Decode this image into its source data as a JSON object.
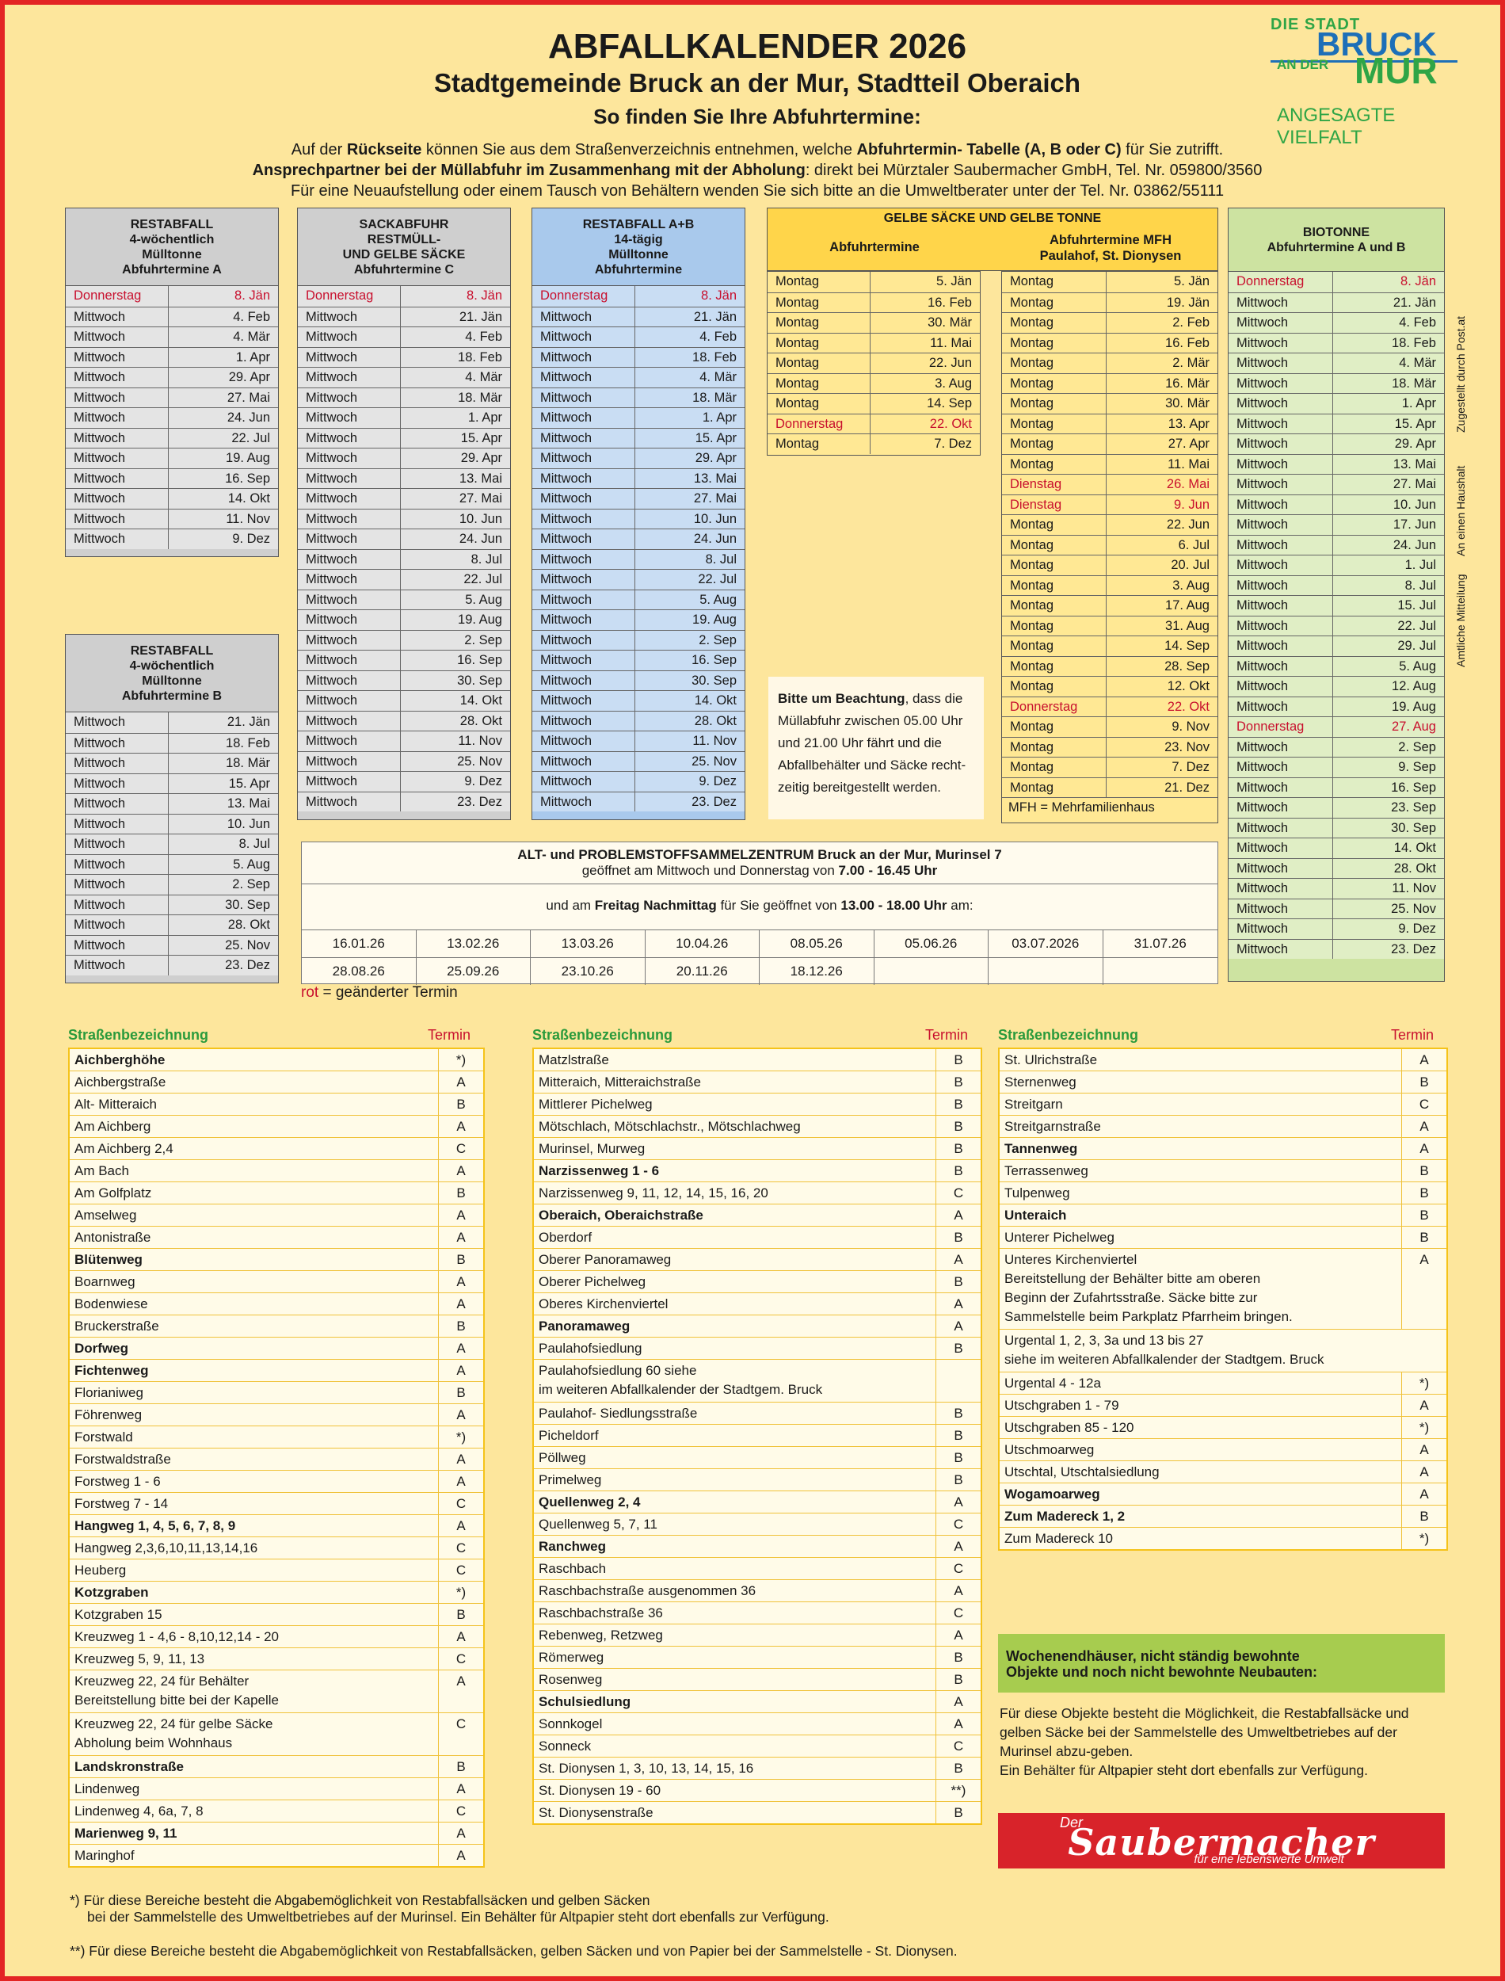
{
  "header": {
    "title": "ABFALLKALENDER 2026",
    "subtitle": "Stadtgemeinde Bruck an der Mur, Stadtteil Oberaich",
    "subtitle2": "So finden Sie Ihre Abfuhrtermine:",
    "info1a": "Auf der ",
    "info1b": "Rückseite",
    "info1c": " können Sie aus dem Straßenverzeichnis entnehmen, welche ",
    "info1d": "Abfuhrtermin- Tabelle (A, B oder C)",
    "info1e": " für Sie zutrifft.",
    "info2a": "Ansprechpartner bei der Müllabfuhr im Zusammenhang mit der Abholung",
    "info2b": ": direkt bei Mürztaler Saubermacher GmbH, Tel. Nr. 059800/3560",
    "info3": "Für eine Neuaufstellung oder einem Tausch von Behältern wenden Sie sich bitte an die Umweltberater unter der Tel. Nr. 03862/55111"
  },
  "logo": {
    "l1": "DIE STADT",
    "l2": "BRUCK",
    "l3": "AN DER",
    "l4": "MUR",
    "l5": "ANGESAGTE VIELFALT"
  },
  "colors": {
    "page": "#fde69c",
    "border": "#e32424",
    "red_text": "#c8102e",
    "green_heading": "#2a9a3c"
  },
  "tables": {
    "restA": {
      "h1": "RESTABFALL",
      "h2": "4-wöchentlich",
      "h3": "Mülltonne",
      "h4": "Abfuhrtermine A",
      "rows": [
        [
          "Donnerstag",
          "8. Jän",
          1
        ],
        [
          "Mittwoch",
          "4. Feb"
        ],
        [
          "Mittwoch",
          "4. Mär"
        ],
        [
          "Mittwoch",
          "1. Apr"
        ],
        [
          "Mittwoch",
          "29. Apr"
        ],
        [
          "Mittwoch",
          "27. Mai"
        ],
        [
          "Mittwoch",
          "24. Jun"
        ],
        [
          "Mittwoch",
          "22. Jul"
        ],
        [
          "Mittwoch",
          "19. Aug"
        ],
        [
          "Mittwoch",
          "16. Sep"
        ],
        [
          "Mittwoch",
          "14. Okt"
        ],
        [
          "Mittwoch",
          "11. Nov"
        ],
        [
          "Mittwoch",
          "9. Dez"
        ]
      ]
    },
    "restB": {
      "h1": "RESTABFALL",
      "h2": "4-wöchentlich",
      "h3": "Mülltonne",
      "h4": "Abfuhrtermine B",
      "rows": [
        [
          "Mittwoch",
          "21. Jän"
        ],
        [
          "Mittwoch",
          "18. Feb"
        ],
        [
          "Mittwoch",
          "18. Mär"
        ],
        [
          "Mittwoch",
          "15. Apr"
        ],
        [
          "Mittwoch",
          "13. Mai"
        ],
        [
          "Mittwoch",
          "10. Jun"
        ],
        [
          "Mittwoch",
          "8. Jul"
        ],
        [
          "Mittwoch",
          "5. Aug"
        ],
        [
          "Mittwoch",
          "2. Sep"
        ],
        [
          "Mittwoch",
          "30. Sep"
        ],
        [
          "Mittwoch",
          "28. Okt"
        ],
        [
          "Mittwoch",
          "25. Nov"
        ],
        [
          "Mittwoch",
          "23. Dez"
        ]
      ]
    },
    "sackC": {
      "h1": "SACKABFUHR",
      "h2": "RESTMÜLL-",
      "h3": "UND GELBE SÄCKE",
      "h4": "Abfuhrtermine C",
      "rows": [
        [
          "Donnerstag",
          "8. Jän",
          1
        ],
        [
          "Mittwoch",
          "21. Jän"
        ],
        [
          "Mittwoch",
          "4. Feb"
        ],
        [
          "Mittwoch",
          "18. Feb"
        ],
        [
          "Mittwoch",
          "4. Mär"
        ],
        [
          "Mittwoch",
          "18. Mär"
        ],
        [
          "Mittwoch",
          "1. Apr"
        ],
        [
          "Mittwoch",
          "15. Apr"
        ],
        [
          "Mittwoch",
          "29. Apr"
        ],
        [
          "Mittwoch",
          "13. Mai"
        ],
        [
          "Mittwoch",
          "27. Mai"
        ],
        [
          "Mittwoch",
          "10. Jun"
        ],
        [
          "Mittwoch",
          "24. Jun"
        ],
        [
          "Mittwoch",
          "8. Jul"
        ],
        [
          "Mittwoch",
          "22. Jul"
        ],
        [
          "Mittwoch",
          "5. Aug"
        ],
        [
          "Mittwoch",
          "19. Aug"
        ],
        [
          "Mittwoch",
          "2. Sep"
        ],
        [
          "Mittwoch",
          "16. Sep"
        ],
        [
          "Mittwoch",
          "30. Sep"
        ],
        [
          "Mittwoch",
          "14. Okt"
        ],
        [
          "Mittwoch",
          "28. Okt"
        ],
        [
          "Mittwoch",
          "11. Nov"
        ],
        [
          "Mittwoch",
          "25. Nov"
        ],
        [
          "Mittwoch",
          "9. Dez"
        ],
        [
          "Mittwoch",
          "23. Dez"
        ]
      ]
    },
    "restAB": {
      "h1": "RESTABFALL A+B",
      "h2": "14-tägig",
      "h3": "Mülltonne",
      "h4": "Abfuhrtermine",
      "rows": [
        [
          "Donnerstag",
          "8. Jän",
          1
        ],
        [
          "Mittwoch",
          "21. Jän"
        ],
        [
          "Mittwoch",
          "4. Feb"
        ],
        [
          "Mittwoch",
          "18. Feb"
        ],
        [
          "Mittwoch",
          "4. Mär"
        ],
        [
          "Mittwoch",
          "18. Mär"
        ],
        [
          "Mittwoch",
          "1. Apr"
        ],
        [
          "Mittwoch",
          "15. Apr"
        ],
        [
          "Mittwoch",
          "29. Apr"
        ],
        [
          "Mittwoch",
          "13. Mai"
        ],
        [
          "Mittwoch",
          "27. Mai"
        ],
        [
          "Mittwoch",
          "10. Jun"
        ],
        [
          "Mittwoch",
          "24. Jun"
        ],
        [
          "Mittwoch",
          "8. Jul"
        ],
        [
          "Mittwoch",
          "22. Jul"
        ],
        [
          "Mittwoch",
          "5. Aug"
        ],
        [
          "Mittwoch",
          "19. Aug"
        ],
        [
          "Mittwoch",
          "2. Sep"
        ],
        [
          "Mittwoch",
          "16. Sep"
        ],
        [
          "Mittwoch",
          "30. Sep"
        ],
        [
          "Mittwoch",
          "14. Okt"
        ],
        [
          "Mittwoch",
          "28. Okt"
        ],
        [
          "Mittwoch",
          "11. Nov"
        ],
        [
          "Mittwoch",
          "25. Nov"
        ],
        [
          "Mittwoch",
          "9. Dez"
        ],
        [
          "Mittwoch",
          "23. Dez"
        ]
      ]
    },
    "gelb": {
      "title": "GELBE SÄCKE UND GELBE TONNE",
      "c1": "Abfuhrtermine",
      "c2a": "Abfuhrtermine MFH",
      "c2b": "Paulahof, St. Dionysen",
      "note": "MFH = Mehrfamilienhaus",
      "rows1": [
        [
          "Montag",
          "5. Jän"
        ],
        [
          "Montag",
          "16. Feb"
        ],
        [
          "Montag",
          "30. Mär"
        ],
        [
          "Montag",
          "11. Mai"
        ],
        [
          "Montag",
          "22. Jun"
        ],
        [
          "Montag",
          "3. Aug"
        ],
        [
          "Montag",
          "14. Sep"
        ],
        [
          "Donnerstag",
          "22. Okt",
          1
        ],
        [
          "Montag",
          "7. Dez"
        ]
      ],
      "rows2": [
        [
          "Montag",
          "5. Jän"
        ],
        [
          "Montag",
          "19. Jän"
        ],
        [
          "Montag",
          "2. Feb"
        ],
        [
          "Montag",
          "16. Feb"
        ],
        [
          "Montag",
          "2. Mär"
        ],
        [
          "Montag",
          "16. Mär"
        ],
        [
          "Montag",
          "30. Mär"
        ],
        [
          "Montag",
          "13. Apr"
        ],
        [
          "Montag",
          "27. Apr"
        ],
        [
          "Montag",
          "11. Mai"
        ],
        [
          "Dienstag",
          "26. Mai",
          1
        ],
        [
          "Dienstag",
          "9. Jun",
          1
        ],
        [
          "Montag",
          "22. Jun"
        ],
        [
          "Montag",
          "6. Jul"
        ],
        [
          "Montag",
          "20. Jul"
        ],
        [
          "Montag",
          "3. Aug"
        ],
        [
          "Montag",
          "17. Aug"
        ],
        [
          "Montag",
          "31. Aug"
        ],
        [
          "Montag",
          "14. Sep"
        ],
        [
          "Montag",
          "28. Sep"
        ],
        [
          "Montag",
          "12. Okt"
        ],
        [
          "Donnerstag",
          "22. Okt",
          1
        ],
        [
          "Montag",
          "9. Nov"
        ],
        [
          "Montag",
          "23. Nov"
        ],
        [
          "Montag",
          "7. Dez"
        ],
        [
          "Montag",
          "21. Dez"
        ]
      ]
    },
    "bio": {
      "h1": "BIOTONNE",
      "h2": "Abfuhrtermine A und B",
      "rows": [
        [
          "Donnerstag",
          "8. Jän",
          1
        ],
        [
          "Mittwoch",
          "21. Jän"
        ],
        [
          "Mittwoch",
          "4. Feb"
        ],
        [
          "Mittwoch",
          "18. Feb"
        ],
        [
          "Mittwoch",
          "4. Mär"
        ],
        [
          "Mittwoch",
          "18. Mär"
        ],
        [
          "Mittwoch",
          "1. Apr"
        ],
        [
          "Mittwoch",
          "15. Apr"
        ],
        [
          "Mittwoch",
          "29. Apr"
        ],
        [
          "Mittwoch",
          "13. Mai"
        ],
        [
          "Mittwoch",
          "27. Mai"
        ],
        [
          "Mittwoch",
          "10. Jun"
        ],
        [
          "Mittwoch",
          "17. Jun"
        ],
        [
          "Mittwoch",
          "24. Jun"
        ],
        [
          "Mittwoch",
          "1. Jul"
        ],
        [
          "Mittwoch",
          "8. Jul"
        ],
        [
          "Mittwoch",
          "15. Jul"
        ],
        [
          "Mittwoch",
          "22. Jul"
        ],
        [
          "Mittwoch",
          "29. Jul"
        ],
        [
          "Mittwoch",
          "5. Aug"
        ],
        [
          "Mittwoch",
          "12. Aug"
        ],
        [
          "Mittwoch",
          "19. Aug"
        ],
        [
          "Donnerstag",
          "27. Aug",
          1
        ],
        [
          "Mittwoch",
          "2. Sep"
        ],
        [
          "Mittwoch",
          "9. Sep"
        ],
        [
          "Mittwoch",
          "16. Sep"
        ],
        [
          "Mittwoch",
          "23. Sep"
        ],
        [
          "Mittwoch",
          "30. Sep"
        ],
        [
          "Mittwoch",
          "14. Okt"
        ],
        [
          "Mittwoch",
          "28. Okt"
        ],
        [
          "Mittwoch",
          "11. Nov"
        ],
        [
          "Mittwoch",
          "25. Nov"
        ],
        [
          "Mittwoch",
          "9. Dez"
        ],
        [
          "Mittwoch",
          "23. Dez"
        ]
      ]
    }
  },
  "beachtung": {
    "b": "Bitte um Beachtung",
    "text": ", dass die Müllabfuhr zwischen 05.00 Uhr und 21.00 Uhr fährt und die Abfallbehälter und Säcke recht-zeitig bereitgestellt werden."
  },
  "sammel": {
    "t1": "ALT- und PROBLEMSTOFFSAMMELZENTRUM Bruck an der Mur, Murinsel 7",
    "t2a": "geöffnet am Mittwoch und Donnerstag von ",
    "t2b": "7.00 - 16.45 Uhr",
    "t3a": "und am ",
    "t3b": "Freitag Nachmittag",
    "t3c": " für Sie geöffnet von ",
    "t3d": "13.00 - 18.00 Uhr",
    "t3e": " am:",
    "dates": [
      "16.01.26",
      "13.02.26",
      "13.03.26",
      "10.04.26",
      "08.05.26",
      "05.06.26",
      "03.07.2026",
      "31.07.26",
      "28.08.26",
      "25.09.26",
      "23.10.26",
      "20.11.26",
      "18.12.26",
      "",
      "",
      ""
    ]
  },
  "legend": {
    "rot": "rot",
    "text": " = geänderter Termin"
  },
  "side": {
    "v1": "Zugestellt durch Post.at",
    "v2": "An einen Haushalt",
    "v3": "Amtliche Mitteilung"
  },
  "streets": {
    "head_name": "Straßenbezeichnung",
    "head_termin": "Termin",
    "col1": [
      [
        "Aichberghöhe",
        "*)",
        1
      ],
      [
        "Aichbergstraße",
        "A"
      ],
      [
        "Alt- Mitteraich",
        "B"
      ],
      [
        "Am Aichberg",
        "A"
      ],
      [
        "Am Aichberg 2,4",
        "C"
      ],
      [
        "Am Bach",
        "A"
      ],
      [
        "Am Golfplatz",
        "B"
      ],
      [
        "Amselweg",
        "A"
      ],
      [
        "Antonistraße",
        "A"
      ],
      [
        "Blütenweg",
        "B",
        1
      ],
      [
        "Boarnweg",
        "A"
      ],
      [
        "Bodenwiese",
        "A"
      ],
      [
        "Bruckerstraße",
        "B"
      ],
      [
        "Dorfweg",
        "A",
        1
      ],
      [
        "Fichtenweg",
        "A",
        1
      ],
      [
        "Florianiweg",
        "B"
      ],
      [
        "Föhrenweg",
        "A"
      ],
      [
        "Forstwald",
        "*)"
      ],
      [
        "Forstwaldstraße",
        "A"
      ],
      [
        "Forstweg 1 - 6",
        "A"
      ],
      [
        "Forstweg 7 - 14",
        "C"
      ],
      [
        "Hangweg 1, 4, 5, 6, 7, 8, 9",
        "A",
        1
      ],
      [
        "Hangweg 2,3,6,10,11,13,14,16",
        "C"
      ],
      [
        "Heuberg",
        "C"
      ],
      [
        "Kotzgraben",
        "*)",
        1
      ],
      [
        "Kotzgraben 15",
        "B"
      ],
      [
        "Kreuzweg 1 - 4,6 - 8,10,12,14 - 20",
        "A"
      ],
      [
        "Kreuzweg 5, 9, 11, 13",
        "C"
      ],
      [
        "Kreuzweg 22, 24 für Behälter\nBereitstellung bitte bei der Kapelle",
        "A"
      ],
      [
        "Kreuzweg 22, 24 für gelbe Säcke\nAbholung beim Wohnhaus",
        "C"
      ],
      [
        "Landskronstraße",
        "B",
        1
      ],
      [
        "Lindenweg",
        "A"
      ],
      [
        "Lindenweg 4, 6a, 7, 8",
        "C"
      ],
      [
        "Marienweg 9, 11",
        "A",
        1
      ],
      [
        "Maringhof",
        "A"
      ]
    ],
    "col2": [
      [
        "Matzlstraße",
        "B"
      ],
      [
        "Mitteraich, Mitteraichstraße",
        "B"
      ],
      [
        "Mittlerer Pichelweg",
        "B"
      ],
      [
        "Mötschlach, Mötschlachstr., Mötschlachweg",
        "B"
      ],
      [
        "Murinsel, Murweg",
        "B"
      ],
      [
        "Narzissenweg 1 - 6",
        "B",
        1
      ],
      [
        "Narzissenweg 9, 11, 12, 14, 15, 16, 20",
        "C"
      ],
      [
        "Oberaich, Oberaichstraße",
        "A",
        1
      ],
      [
        "Oberdorf",
        "B"
      ],
      [
        "Oberer Panoramaweg",
        "A"
      ],
      [
        "Oberer Pichelweg",
        "B"
      ],
      [
        "Oberes Kirchenviertel",
        "A"
      ],
      [
        "Panoramaweg",
        "A",
        1
      ],
      [
        "Paulahofsiedlung",
        "B"
      ],
      [
        "Paulahofsiedlung 60 siehe\nim weiteren Abfallkalender der Stadtgem. Bruck",
        ""
      ],
      [
        "Paulahof- Siedlungsstraße",
        "B"
      ],
      [
        "Picheldorf",
        "B"
      ],
      [
        "Pöllweg",
        "B"
      ],
      [
        "Primelweg",
        "B"
      ],
      [
        "Quellenweg 2, 4",
        "A",
        1
      ],
      [
        "Quellenweg 5, 7, 11",
        "C"
      ],
      [
        "Ranchweg",
        "A",
        1
      ],
      [
        "Raschbach",
        "C"
      ],
      [
        "Raschbachstraße ausgenommen 36",
        "A"
      ],
      [
        "Raschbachstraße 36",
        "C"
      ],
      [
        "Rebenweg, Retzweg",
        "A"
      ],
      [
        "Römerweg",
        "B"
      ],
      [
        "Rosenweg",
        "B"
      ],
      [
        "Schulsiedlung",
        "A",
        1
      ],
      [
        "Sonnkogel",
        "A"
      ],
      [
        "Sonneck",
        "C"
      ],
      [
        "St. Dionysen 1, 3, 10, 13, 14, 15, 16",
        "B"
      ],
      [
        "St. Dionysen 19 - 60",
        "**)"
      ],
      [
        "St. Dionysenstraße",
        "B"
      ]
    ],
    "col3": [
      [
        "St. Ulrichstraße",
        "A"
      ],
      [
        "Sternenweg",
        "B"
      ],
      [
        "Streitgarn",
        "C"
      ],
      [
        "Streitgarnstraße",
        "A"
      ],
      [
        "Tannenweg",
        "A",
        1
      ],
      [
        "Terrassenweg",
        "B"
      ],
      [
        "Tulpenweg",
        "B"
      ],
      [
        "Unteraich",
        "B",
        1
      ],
      [
        "Unterer Pichelweg",
        "B"
      ],
      [
        "Unteres Kirchenviertel\nBereitstellung der Behälter bitte am oberen\nBeginn der Zufahrtsstraße. Säcke bitte zur\nSammelstelle beim Parkplatz Pfarrheim bringen.",
        "A"
      ],
      [
        "Urgental 1, 2, 3, 3a und 13 bis 27\nsiehe im weiteren Abfallkalender der Stadtgem. Bruck",
        "",
        0,
        1
      ],
      [
        "Urgental 4 - 12a",
        "*)"
      ],
      [
        "Utschgraben 1 - 79",
        "A"
      ],
      [
        "Utschgraben 85 - 120",
        "*)"
      ],
      [
        "Utschmoarweg",
        "A"
      ],
      [
        "Utschtal, Utschtalsiedlung",
        "A"
      ],
      [
        "Wogamoarweg",
        "A",
        1
      ],
      [
        "Zum Madereck 1, 2",
        "B",
        1
      ],
      [
        "Zum Madereck 10",
        "*)"
      ]
    ]
  },
  "weekend": {
    "title": "Wochenendhäuser, nicht ständig bewohnte\nObjekte und noch nicht bewohnte Neubauten:",
    "text": "Für diese Objekte besteht die Möglichkeit, die Restabfallsäcke und gelben Säcke bei der Sammelstelle des Umweltbetriebes auf der Murinsel abzu-geben.\nEin Behälter für Altpapier steht dort ebenfalls zur Verfügung."
  },
  "saubermacher": {
    "der": "Der",
    "name": "Saubermacher",
    "slogan": "für eine lebenswerte Umwelt"
  },
  "footnotes": {
    "f1a": "*) Für diese Bereiche besteht die Abgabemöglichkeit von Restabfallsäcken und gelben Säcken",
    "f1b": "bei der Sammelstelle des Umweltbetriebes auf der Murinsel. Ein Behälter für Altpapier steht dort ebenfalls zur Verfügung.",
    "f2": "**) Für diese Bereiche besteht die Abgabemöglichkeit von Restabfallsäcken, gelben Säcken und von Papier bei der Sammelstelle - St. Dionysen."
  }
}
